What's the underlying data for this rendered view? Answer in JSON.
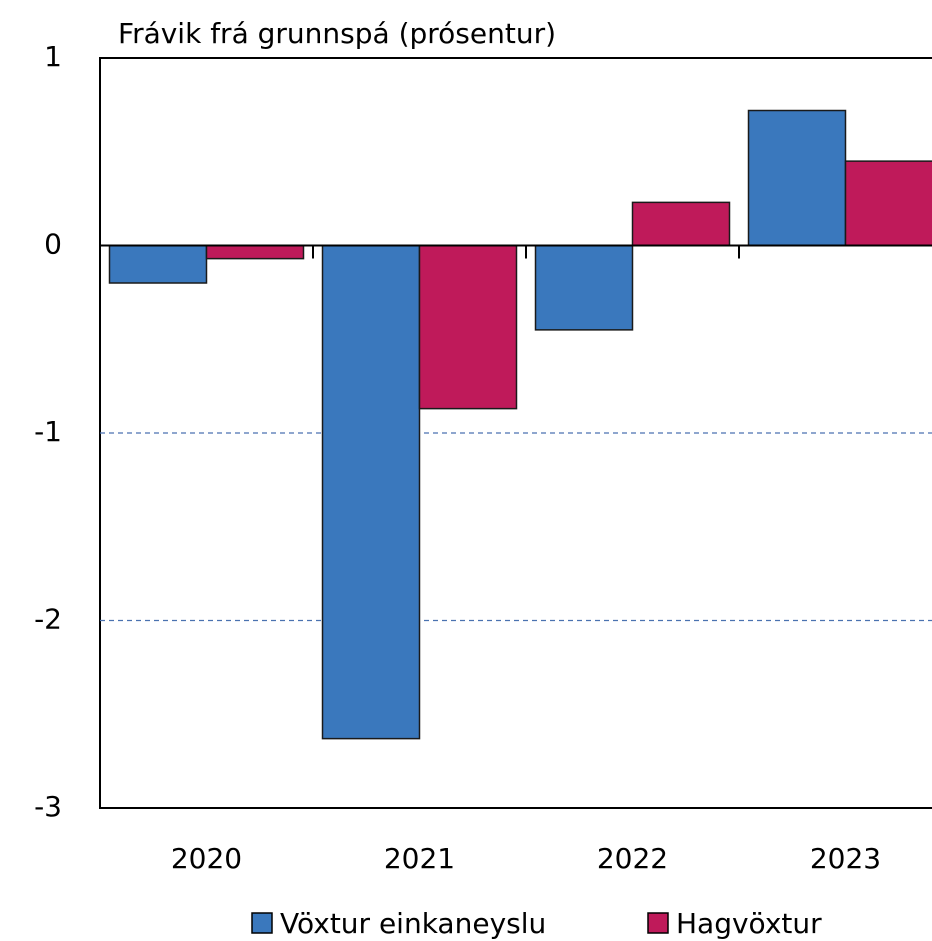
{
  "chart_data": {
    "type": "bar",
    "title": "Frávik frá grunnspá (prósentur)",
    "categories": [
      "2020",
      "2021",
      "2022",
      "2023"
    ],
    "series": [
      {
        "name": "Vöxtur einkaneyslu",
        "color": "#3a78bd",
        "values": [
          -0.2,
          -2.63,
          -0.45,
          0.72
        ]
      },
      {
        "name": "Hagvöxtur",
        "color": "#bf1a5a",
        "values": [
          -0.07,
          -0.87,
          0.23,
          0.45
        ]
      }
    ],
    "ylim": [
      -3,
      1
    ],
    "yticks": [
      -3,
      -2,
      -1,
      0,
      1
    ],
    "grid": true
  }
}
